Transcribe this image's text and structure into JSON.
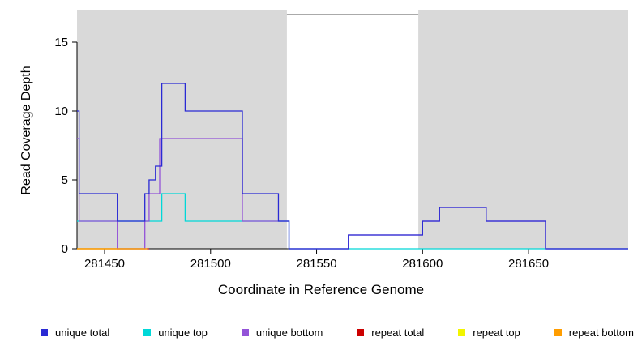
{
  "figure": {
    "background": "#ffffff",
    "shade_color": "#d9d9d9",
    "axis_color": "#000000",
    "border_color": "#555555"
  },
  "chart_data": {
    "type": "line",
    "step": true,
    "title": "",
    "xlabel": "Coordinate in Reference Genome",
    "ylabel": "Read Coverage Depth",
    "xlim": [
      281437,
      281697
    ],
    "ylim": [
      0,
      17
    ],
    "x_ticks": [
      281450,
      281500,
      281550,
      281600,
      281650
    ],
    "y_ticks": [
      0,
      5,
      10,
      15
    ],
    "grid": false,
    "legend_position": "bottom",
    "shaded_regions": [
      {
        "x0": 281437,
        "x1": 281536,
        "color": "#d9d9d9"
      },
      {
        "x0": 281598,
        "x1": 281697,
        "color": "#d9d9d9"
      }
    ],
    "series": [
      {
        "name": "repeat total",
        "color": "#cc0000",
        "points": [
          [
            281437,
            0
          ],
          [
            281471,
            0
          ]
        ]
      },
      {
        "name": "repeat top",
        "color": "#f2f200",
        "points": [
          [
            281437,
            0
          ],
          [
            281470,
            0
          ]
        ]
      },
      {
        "name": "unique top",
        "color": "#00d8d8",
        "points": [
          [
            281437,
            2
          ],
          [
            281477,
            4
          ],
          [
            281488,
            2
          ],
          [
            281537,
            0
          ],
          [
            281697,
            0
          ]
        ]
      },
      {
        "name": "unique bottom",
        "color": "#9353d8",
        "points": [
          [
            281437,
            8
          ],
          [
            281438,
            2
          ],
          [
            281456,
            0
          ],
          [
            281469,
            2
          ],
          [
            281471,
            4
          ],
          [
            281476,
            8
          ],
          [
            281515,
            2
          ],
          [
            281537,
            0
          ],
          [
            281565,
            1
          ],
          [
            281600,
            2
          ],
          [
            281608,
            3
          ],
          [
            281630,
            2
          ],
          [
            281658,
            0
          ],
          [
            281697,
            0
          ]
        ]
      },
      {
        "name": "repeat bottom",
        "color": "#ff9d00",
        "points": [
          [
            281437,
            0
          ],
          [
            281470,
            0
          ]
        ]
      },
      {
        "name": "unique total",
        "color": "#2a2ad4",
        "points": [
          [
            281437,
            10
          ],
          [
            281438,
            4
          ],
          [
            281456,
            2
          ],
          [
            281469,
            4
          ],
          [
            281471,
            5
          ],
          [
            281474,
            6
          ],
          [
            281477,
            12
          ],
          [
            281488,
            10
          ],
          [
            281515,
            4
          ],
          [
            281532,
            2
          ],
          [
            281537,
            0
          ],
          [
            281565,
            1
          ],
          [
            281600,
            2
          ],
          [
            281608,
            3
          ],
          [
            281630,
            2
          ],
          [
            281658,
            0
          ],
          [
            281697,
            0
          ]
        ]
      }
    ],
    "legend": [
      {
        "label": "unique total",
        "color": "#2a2ad4"
      },
      {
        "label": "unique top",
        "color": "#00d8d8"
      },
      {
        "label": "unique bottom",
        "color": "#9353d8"
      },
      {
        "label": "repeat total",
        "color": "#cc0000"
      },
      {
        "label": "repeat top",
        "color": "#f2f500"
      },
      {
        "label": "repeat bottom",
        "color": "#ff9d00"
      }
    ]
  }
}
